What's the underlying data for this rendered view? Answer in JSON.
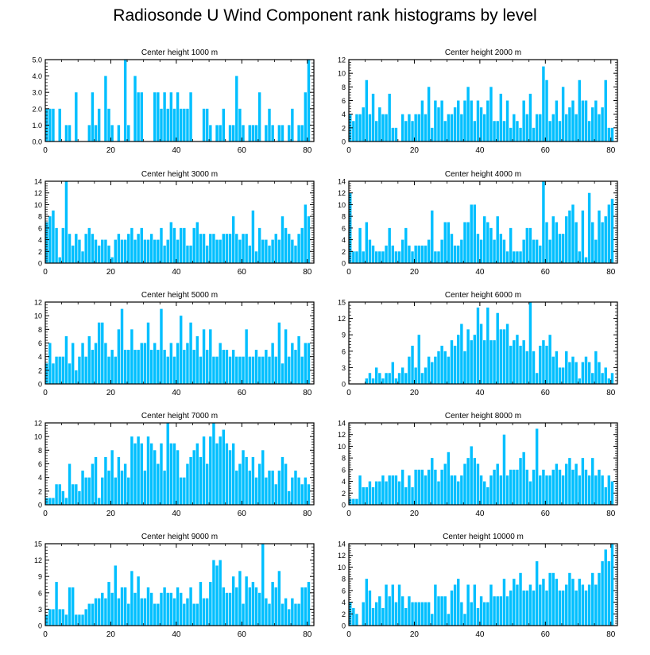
{
  "title": "Radiosonde U Wind Component rank histograms by level",
  "bar_color": "#00bfff",
  "chart_data": [
    {
      "type": "bar",
      "title": "Center height 1000 m",
      "xticks": [
        0,
        20,
        40,
        60,
        80
      ],
      "yticks": [
        "0.0",
        "1.0",
        "2.0",
        "3.0",
        "4.0",
        "5.0"
      ],
      "ylim": [
        0,
        5
      ],
      "values": [
        2,
        2,
        2,
        0,
        2,
        0,
        1,
        1,
        0,
        3,
        0,
        0,
        0,
        1,
        3,
        1,
        2,
        0,
        4,
        2,
        1,
        0,
        1,
        0,
        5,
        1,
        0,
        4,
        3,
        3,
        0,
        0,
        0,
        3,
        3,
        2,
        3,
        2,
        3,
        2,
        3,
        2,
        2,
        2,
        3,
        0,
        0,
        0,
        2,
        2,
        1,
        0,
        1,
        1,
        2,
        0,
        1,
        1,
        4,
        2,
        1,
        0,
        1,
        1,
        1,
        3,
        0,
        1,
        2,
        1,
        0,
        1,
        1,
        0,
        1,
        2,
        0,
        1,
        1,
        3,
        5
      ]
    },
    {
      "type": "bar",
      "title": "Center height 2000 m",
      "xticks": [
        0,
        20,
        40,
        60,
        80
      ],
      "yticks": [
        "0",
        "2",
        "4",
        "6",
        "8",
        "10",
        "12"
      ],
      "ylim": [
        0,
        12
      ],
      "values": [
        4,
        3,
        4,
        4,
        5,
        9,
        4,
        7,
        3,
        5,
        4,
        4,
        7,
        2,
        2,
        0,
        4,
        3,
        4,
        3,
        4,
        4,
        6,
        4,
        8,
        2,
        6,
        5,
        6,
        3,
        4,
        4,
        5,
        6,
        4,
        6,
        8,
        6,
        3,
        6,
        5,
        4,
        6,
        8,
        3,
        3,
        7,
        3,
        6,
        2,
        4,
        3,
        2,
        6,
        4,
        7,
        2,
        4,
        4,
        11,
        9,
        3,
        4,
        6,
        3,
        8,
        4,
        5,
        6,
        4,
        9,
        6,
        6,
        3,
        5,
        6,
        4,
        5,
        9,
        2,
        2
      ]
    },
    {
      "type": "bar",
      "title": "Center height 3000 m",
      "xticks": [
        0,
        20,
        40,
        60,
        80
      ],
      "yticks": [
        "0",
        "2",
        "4",
        "6",
        "8",
        "10",
        "12",
        "14"
      ],
      "ylim": [
        0,
        14
      ],
      "values": [
        7,
        8,
        9,
        6,
        1,
        6,
        14,
        5,
        3,
        5,
        4,
        2,
        5,
        6,
        5,
        4,
        3,
        4,
        4,
        3,
        1,
        4,
        5,
        4,
        4,
        5,
        6,
        4,
        5,
        6,
        4,
        4,
        5,
        4,
        4,
        6,
        3,
        4,
        7,
        6,
        4,
        6,
        6,
        3,
        3,
        6,
        7,
        5,
        5,
        3,
        5,
        5,
        4,
        4,
        5,
        5,
        5,
        8,
        5,
        4,
        5,
        5,
        3,
        9,
        2,
        6,
        4,
        4,
        3,
        4,
        5,
        4,
        8,
        6,
        5,
        4,
        3,
        5,
        6,
        10,
        8
      ]
    },
    {
      "type": "bar",
      "title": "Center height 4000 m",
      "xticks": [
        0,
        20,
        40,
        60,
        80
      ],
      "yticks": [
        "0",
        "2",
        "4",
        "6",
        "8",
        "10",
        "12",
        "14"
      ],
      "ylim": [
        0,
        14
      ],
      "values": [
        12,
        2,
        2,
        6,
        2,
        7,
        4,
        3,
        2,
        2,
        2,
        3,
        6,
        3,
        2,
        2,
        4,
        6,
        3,
        2,
        3,
        3,
        3,
        3,
        4,
        9,
        2,
        2,
        4,
        7,
        7,
        5,
        3,
        3,
        4,
        7,
        7,
        10,
        10,
        5,
        4,
        8,
        7,
        6,
        4,
        8,
        5,
        4,
        2,
        6,
        2,
        2,
        2,
        4,
        6,
        6,
        4,
        4,
        3,
        14,
        7,
        4,
        8,
        7,
        5,
        5,
        8,
        9,
        10,
        7,
        2,
        9,
        1,
        12,
        7,
        4,
        9,
        7,
        8,
        10,
        11
      ]
    },
    {
      "type": "bar",
      "title": "Center height 5000 m",
      "xticks": [
        0,
        20,
        40,
        60,
        80
      ],
      "yticks": [
        "0",
        "2",
        "4",
        "6",
        "8",
        "10",
        "12"
      ],
      "ylim": [
        0,
        12
      ],
      "values": [
        3,
        6,
        3,
        4,
        4,
        4,
        7,
        3,
        6,
        2,
        4,
        6,
        4,
        7,
        5,
        6,
        9,
        9,
        6,
        4,
        5,
        4,
        8,
        11,
        5,
        5,
        8,
        5,
        5,
        6,
        6,
        9,
        5,
        6,
        5,
        11,
        5,
        4,
        6,
        4,
        6,
        10,
        5,
        6,
        9,
        5,
        7,
        4,
        8,
        5,
        8,
        4,
        4,
        6,
        5,
        5,
        4,
        5,
        4,
        4,
        4,
        8,
        4,
        4,
        5,
        4,
        4,
        5,
        4,
        6,
        4,
        9,
        3,
        8,
        4,
        6,
        5,
        7,
        4,
        6,
        6
      ]
    },
    {
      "type": "bar",
      "title": "Center height 6000 m",
      "xticks": [
        0,
        20,
        40,
        60,
        80
      ],
      "yticks": [
        "0",
        "3",
        "6",
        "9",
        "12",
        "15"
      ],
      "ylim": [
        0,
        15
      ],
      "values": [
        0,
        0,
        0,
        0,
        0,
        1,
        2,
        1,
        3,
        2,
        1,
        2,
        2,
        4,
        1,
        2,
        3,
        2,
        5,
        7,
        3,
        9,
        2,
        3,
        5,
        4,
        5,
        6,
        7,
        6,
        5,
        8,
        7,
        9,
        11,
        6,
        10,
        8,
        9,
        14,
        11,
        8,
        14,
        8,
        8,
        13,
        10,
        10,
        11,
        7,
        8,
        9,
        7,
        8,
        6,
        15,
        6,
        2,
        7,
        8,
        7,
        9,
        5,
        6,
        3,
        3,
        6,
        4,
        5,
        4,
        1,
        4,
        5,
        4,
        2,
        6,
        4,
        2,
        3,
        1,
        2
      ]
    },
    {
      "type": "bar",
      "title": "Center height 7000 m",
      "xticks": [
        0,
        20,
        40,
        60,
        80
      ],
      "yticks": [
        "0",
        "2",
        "4",
        "6",
        "8",
        "10",
        "12"
      ],
      "ylim": [
        0,
        12
      ],
      "values": [
        1,
        1,
        1,
        3,
        3,
        2,
        1,
        6,
        3,
        3,
        2,
        5,
        4,
        4,
        6,
        7,
        1,
        4,
        7,
        5,
        8,
        4,
        7,
        5,
        6,
        4,
        10,
        9,
        10,
        9,
        5,
        10,
        9,
        8,
        6,
        9,
        5,
        12,
        9,
        9,
        8,
        4,
        4,
        6,
        7,
        8,
        9,
        7,
        10,
        6,
        10,
        12,
        9,
        10,
        11,
        9,
        8,
        9,
        5,
        6,
        8,
        7,
        5,
        7,
        4,
        6,
        8,
        4,
        5,
        5,
        3,
        5,
        7,
        6,
        2,
        4,
        5,
        4,
        3,
        4,
        3
      ]
    },
    {
      "type": "bar",
      "title": "Center height 8000 m",
      "xticks": [
        0,
        20,
        40,
        60,
        80
      ],
      "yticks": [
        "0",
        "2",
        "4",
        "6",
        "8",
        "10",
        "12",
        "14"
      ],
      "ylim": [
        0,
        14
      ],
      "values": [
        1,
        1,
        1,
        5,
        3,
        3,
        4,
        3,
        4,
        4,
        5,
        4,
        5,
        5,
        5,
        4,
        6,
        3,
        5,
        3,
        6,
        6,
        6,
        5,
        6,
        8,
        6,
        4,
        6,
        7,
        9,
        5,
        5,
        4,
        5,
        7,
        8,
        10,
        8,
        7,
        5,
        4,
        3,
        5,
        6,
        7,
        5,
        12,
        5,
        6,
        6,
        6,
        8,
        9,
        6,
        4,
        6,
        13,
        5,
        6,
        5,
        5,
        6,
        7,
        6,
        5,
        7,
        8,
        6,
        7,
        5,
        8,
        6,
        5,
        8,
        5,
        6,
        5,
        3,
        5,
        4
      ]
    },
    {
      "type": "bar",
      "title": "Center height 9000 m",
      "xticks": [
        0,
        20,
        40,
        60,
        80
      ],
      "yticks": [
        "0",
        "3",
        "6",
        "9",
        "12",
        "15"
      ],
      "ylim": [
        0,
        15
      ],
      "values": [
        2,
        3,
        3,
        8,
        3,
        3,
        2,
        7,
        7,
        2,
        2,
        2,
        3,
        4,
        4,
        5,
        5,
        6,
        5,
        8,
        6,
        11,
        5,
        7,
        7,
        4,
        10,
        6,
        9,
        5,
        5,
        7,
        6,
        4,
        4,
        6,
        7,
        6,
        6,
        5,
        7,
        6,
        4,
        5,
        7,
        4,
        4,
        8,
        5,
        5,
        8,
        12,
        11,
        12,
        7,
        6,
        6,
        9,
        7,
        10,
        4,
        9,
        7,
        8,
        7,
        6,
        15,
        5,
        4,
        8,
        7,
        10,
        4,
        5,
        3,
        5,
        4,
        4,
        7,
        7,
        8
      ]
    },
    {
      "type": "bar",
      "title": "Center height 10000 m",
      "xticks": [
        0,
        20,
        40,
        60,
        80
      ],
      "yticks": [
        "0",
        "2",
        "4",
        "6",
        "8",
        "10",
        "12",
        "14"
      ],
      "ylim": [
        0,
        14
      ],
      "values": [
        4,
        3,
        2,
        0,
        4,
        8,
        6,
        3,
        4,
        5,
        3,
        7,
        5,
        7,
        4,
        7,
        5,
        3,
        5,
        4,
        4,
        4,
        4,
        4,
        4,
        2,
        7,
        5,
        5,
        5,
        2,
        6,
        7,
        8,
        4,
        2,
        7,
        4,
        7,
        3,
        5,
        4,
        4,
        7,
        5,
        5,
        5,
        8,
        5,
        6,
        8,
        7,
        9,
        6,
        6,
        7,
        6,
        11,
        7,
        8,
        6,
        9,
        9,
        8,
        6,
        6,
        7,
        9,
        8,
        6,
        8,
        7,
        6,
        7,
        9,
        7,
        9,
        11,
        13,
        11,
        14
      ]
    }
  ]
}
